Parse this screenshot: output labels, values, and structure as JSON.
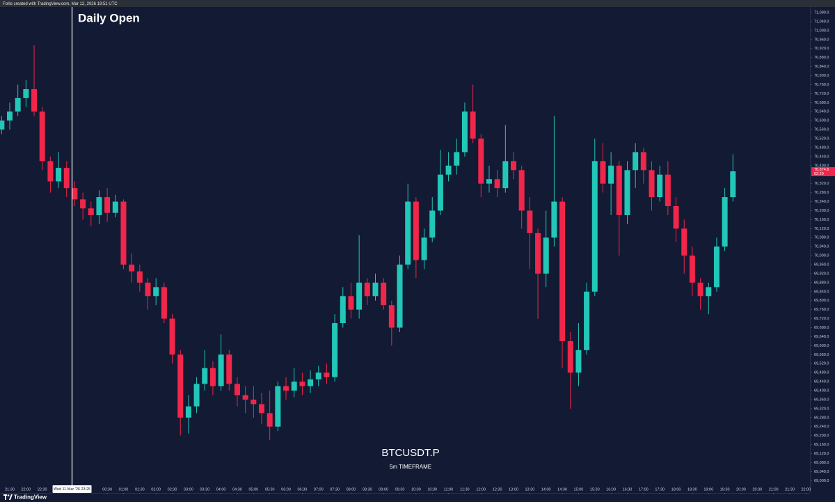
{
  "chart_data": {
    "type": "candlestick",
    "header": "Follis created with TradingView.com, Mar 12, 2026 19:51 UTC",
    "title": "Daily Open",
    "symbol": "BTCUSDT.P",
    "timeframe": "5m TIMEFRAME",
    "footer": "TradingView",
    "up_color": "#22c7b8",
    "down_color": "#f0264a",
    "daily_open": {
      "x": "23:25",
      "label": "Wed 11 Mar '26  23:25"
    },
    "price_label": "70,374.6",
    "countdown": "02:29",
    "ylim": [
      68970,
      71105
    ],
    "yticks": [
      {
        "value": 69000,
        "label": "69,000.0"
      },
      {
        "value": 69040,
        "label": "69,040.0"
      },
      {
        "value": 69080,
        "label": "69,080.0"
      },
      {
        "value": 69120,
        "label": "69,120.0"
      },
      {
        "value": 69160,
        "label": "69,160.0"
      },
      {
        "value": 69200,
        "label": "69,200.0"
      },
      {
        "value": 69240,
        "label": "69,240.0"
      },
      {
        "value": 69280,
        "label": "69,280.0"
      },
      {
        "value": 69320,
        "label": "69,320.0"
      },
      {
        "value": 69360,
        "label": "69,360.0"
      },
      {
        "value": 69400,
        "label": "69,400.0"
      },
      {
        "value": 69440,
        "label": "69,440.0"
      },
      {
        "value": 69480,
        "label": "69,480.0"
      },
      {
        "value": 69520,
        "label": "69,520.0"
      },
      {
        "value": 69560,
        "label": "69,560.0"
      },
      {
        "value": 69600,
        "label": "69,600.0"
      },
      {
        "value": 69640,
        "label": "69,640.0"
      },
      {
        "value": 69680,
        "label": "69,680.0"
      },
      {
        "value": 69720,
        "label": "69,720.0"
      },
      {
        "value": 69760,
        "label": "69,760.0"
      },
      {
        "value": 69800,
        "label": "69,800.0"
      },
      {
        "value": 69840,
        "label": "69,840.0"
      },
      {
        "value": 69880,
        "label": "69,880.0"
      },
      {
        "value": 69920,
        "label": "69,920.0"
      },
      {
        "value": 69960,
        "label": "69,960.0"
      },
      {
        "value": 70000,
        "label": "70,000.0"
      },
      {
        "value": 70040,
        "label": "70,040.0"
      },
      {
        "value": 70080,
        "label": "70,080.0"
      },
      {
        "value": 70120,
        "label": "70,120.0"
      },
      {
        "value": 70160,
        "label": "70,160.0"
      },
      {
        "value": 70200,
        "label": "70,200.0"
      },
      {
        "value": 70240,
        "label": "70,240.0"
      },
      {
        "value": 70280,
        "label": "70,280.0"
      },
      {
        "value": 70320,
        "label": "70,320.0"
      },
      {
        "value": 70400,
        "label": "70,400.0"
      },
      {
        "value": 70440,
        "label": "70,440.0"
      },
      {
        "value": 70480,
        "label": "70,480.0"
      },
      {
        "value": 70520,
        "label": "70,520.0"
      },
      {
        "value": 70560,
        "label": "70,560.0"
      },
      {
        "value": 70600,
        "label": "70,600.0"
      },
      {
        "value": 70640,
        "label": "70,640.0"
      },
      {
        "value": 70680,
        "label": "70,680.0"
      },
      {
        "value": 70720,
        "label": "70,720.0"
      },
      {
        "value": 70760,
        "label": "70,760.0"
      },
      {
        "value": 70800,
        "label": "70,800.0"
      },
      {
        "value": 70840,
        "label": "70,840.0"
      },
      {
        "value": 70880,
        "label": "70,880.0"
      },
      {
        "value": 70920,
        "label": "70,920.0"
      },
      {
        "value": 70960,
        "label": "70,960.0"
      },
      {
        "value": 71000,
        "label": "71,000.0"
      },
      {
        "value": 71040,
        "label": "71,040.0"
      },
      {
        "value": 71080,
        "label": "71,080.0"
      }
    ],
    "xticks": [
      "21:30",
      "22:00",
      "22:30",
      "00:30",
      "01:00",
      "01:30",
      "02:00",
      "02:30",
      "03:00",
      "03:30",
      "04:00",
      "04:30",
      "05:00",
      "05:30",
      "06:00",
      "06:30",
      "07:00",
      "07:30",
      "08:00",
      "08:30",
      "09:00",
      "09:30",
      "10:00",
      "10:30",
      "11:00",
      "11:30",
      "12:00",
      "12:30",
      "13:00",
      "13:30",
      "14:00",
      "14:30",
      "15:00",
      "15:30",
      "16:00",
      "16:30",
      "17:00",
      "17:30",
      "18:00",
      "18:30",
      "19:00",
      "19:30",
      "20:00",
      "20:30",
      "21:00",
      "21:30",
      "22:00"
    ],
    "x": [
      "21:15",
      "21:30",
      "21:45",
      "22:00",
      "22:15",
      "22:30",
      "22:45",
      "23:00",
      "23:15",
      "23:30",
      "23:45",
      "00:00",
      "00:15",
      "00:30",
      "00:45",
      "01:00",
      "01:15",
      "01:30",
      "01:45",
      "02:00",
      "02:15",
      "02:30",
      "02:45",
      "03:00",
      "03:15",
      "03:30",
      "03:45",
      "04:00",
      "04:15",
      "04:30",
      "04:45",
      "05:00",
      "05:15",
      "05:30",
      "05:45",
      "06:00",
      "06:15",
      "06:30",
      "06:45",
      "07:00",
      "07:15",
      "07:30",
      "07:45",
      "08:00",
      "08:15",
      "08:30",
      "08:45",
      "09:00",
      "09:15",
      "09:30",
      "09:45",
      "10:00",
      "10:15",
      "10:30",
      "10:45",
      "11:00",
      "11:15",
      "11:30",
      "11:45",
      "12:00",
      "12:15",
      "12:30",
      "12:45",
      "13:00",
      "13:15",
      "13:30",
      "13:45",
      "14:00",
      "14:15",
      "14:30",
      "14:45",
      "15:00",
      "15:15",
      "15:30",
      "15:45",
      "16:00",
      "16:15",
      "16:30",
      "16:45",
      "17:00",
      "17:15",
      "17:30",
      "17:45",
      "18:00",
      "18:15",
      "18:30",
      "18:45",
      "19:00",
      "19:15",
      "19:30",
      "19:45"
    ],
    "candles": [
      [
        70560,
        70620,
        70540,
        70600
      ],
      [
        70600,
        70680,
        70560,
        70640
      ],
      [
        70640,
        70760,
        70620,
        70700
      ],
      [
        70700,
        70780,
        70660,
        70740
      ],
      [
        70740,
        70935,
        70620,
        70640
      ],
      [
        70640,
        70660,
        70380,
        70420
      ],
      [
        70420,
        70440,
        70280,
        70330
      ],
      [
        70330,
        70460,
        70300,
        70390
      ],
      [
        70390,
        70420,
        70260,
        70300
      ],
      [
        70300,
        70330,
        70220,
        70250
      ],
      [
        70250,
        70280,
        70160,
        70210
      ],
      [
        70210,
        70240,
        70130,
        70180
      ],
      [
        70180,
        70290,
        70140,
        70260
      ],
      [
        70260,
        70300,
        70150,
        70190
      ],
      [
        70190,
        70270,
        70170,
        70240
      ],
      [
        70240,
        70250,
        69940,
        69960
      ],
      [
        69960,
        70010,
        69880,
        69930
      ],
      [
        69930,
        69960,
        69840,
        69880
      ],
      [
        69880,
        69900,
        69760,
        69820
      ],
      [
        69820,
        69900,
        69780,
        69860
      ],
      [
        69860,
        69880,
        69700,
        69720
      ],
      [
        69720,
        69740,
        69520,
        69560
      ],
      [
        69560,
        69580,
        69200,
        69280
      ],
      [
        69280,
        69380,
        69210,
        69330
      ],
      [
        69330,
        69460,
        69300,
        69430
      ],
      [
        69430,
        69580,
        69400,
        69500
      ],
      [
        69500,
        69530,
        69380,
        69420
      ],
      [
        69420,
        69650,
        69400,
        69560
      ],
      [
        69560,
        69580,
        69400,
        69430
      ],
      [
        69430,
        69460,
        69330,
        69380
      ],
      [
        69380,
        69420,
        69300,
        69360
      ],
      [
        69360,
        69420,
        69280,
        69340
      ],
      [
        69340,
        69390,
        69250,
        69300
      ],
      [
        69300,
        69400,
        69180,
        69240
      ],
      [
        69240,
        69440,
        69220,
        69420
      ],
      [
        69420,
        69460,
        69360,
        69400
      ],
      [
        69400,
        69500,
        69370,
        69440
      ],
      [
        69440,
        69480,
        69380,
        69420
      ],
      [
        69420,
        69490,
        69390,
        69450
      ],
      [
        69450,
        69510,
        69420,
        69480
      ],
      [
        69480,
        69520,
        69430,
        69460
      ],
      [
        69460,
        69740,
        69440,
        69700
      ],
      [
        69700,
        69860,
        69680,
        69820
      ],
      [
        69820,
        69880,
        69720,
        69760
      ],
      [
        69760,
        70090,
        69720,
        69880
      ],
      [
        69880,
        69900,
        69780,
        69820
      ],
      [
        69820,
        69920,
        69800,
        69880
      ],
      [
        69880,
        69900,
        69760,
        69780
      ],
      [
        69780,
        69800,
        69600,
        69680
      ],
      [
        69680,
        70000,
        69660,
        69960
      ],
      [
        69960,
        70320,
        69940,
        70240
      ],
      [
        70240,
        70260,
        69900,
        69980
      ],
      [
        69980,
        70120,
        69940,
        70080
      ],
      [
        70080,
        70260,
        70060,
        70200
      ],
      [
        70200,
        70470,
        70180,
        70360
      ],
      [
        70360,
        70460,
        70330,
        70400
      ],
      [
        70400,
        70520,
        70360,
        70460
      ],
      [
        70460,
        70680,
        70440,
        70640
      ],
      [
        70640,
        70760,
        70500,
        70520
      ],
      [
        70520,
        70540,
        70260,
        70320
      ],
      [
        70320,
        70400,
        70280,
        70340
      ],
      [
        70340,
        70380,
        70260,
        70300
      ],
      [
        70300,
        70580,
        70280,
        70420
      ],
      [
        70420,
        70460,
        70340,
        70380
      ],
      [
        70380,
        70400,
        70120,
        70200
      ],
      [
        70200,
        70260,
        69940,
        70100
      ],
      [
        70100,
        70120,
        69720,
        69920
      ],
      [
        69920,
        70200,
        69860,
        70080
      ],
      [
        70080,
        70620,
        70040,
        70240
      ],
      [
        70240,
        70260,
        69500,
        69620
      ],
      [
        69620,
        69660,
        69320,
        69480
      ],
      [
        69480,
        69700,
        69420,
        69580
      ],
      [
        69580,
        69880,
        69560,
        69840
      ],
      [
        69840,
        70520,
        69820,
        70420
      ],
      [
        70420,
        70500,
        70280,
        70320
      ],
      [
        70320,
        70460,
        70180,
        70400
      ],
      [
        70400,
        70420,
        70000,
        70180
      ],
      [
        70180,
        70420,
        70140,
        70380
      ],
      [
        70380,
        70500,
        70300,
        70460
      ],
      [
        70460,
        70480,
        70320,
        70380
      ],
      [
        70380,
        70420,
        70200,
        70260
      ],
      [
        70260,
        70400,
        70240,
        70360
      ],
      [
        70360,
        70420,
        70180,
        70220
      ],
      [
        70220,
        70260,
        70060,
        70120
      ],
      [
        70120,
        70160,
        69920,
        70000
      ],
      [
        70000,
        70040,
        69820,
        69880
      ],
      [
        69880,
        69900,
        69760,
        69820
      ],
      [
        69820,
        69880,
        69740,
        69860
      ],
      [
        69860,
        70080,
        69840,
        70040
      ],
      [
        70040,
        70300,
        70020,
        70260
      ],
      [
        70260,
        70450,
        70240,
        70374.6
      ]
    ]
  }
}
